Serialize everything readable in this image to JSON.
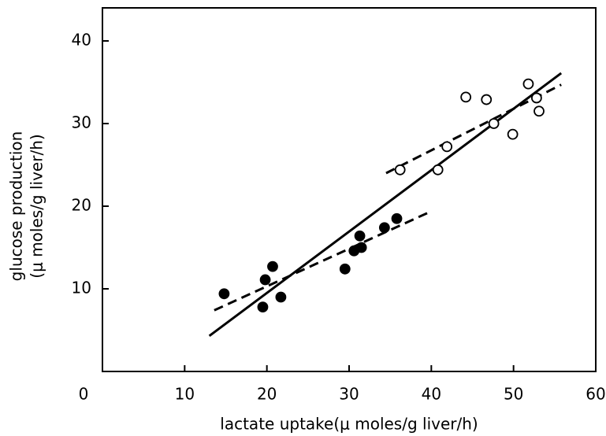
{
  "chart_data": {
    "type": "scatter",
    "xlabel": "lactate uptake(μ moles/g liver/h)",
    "ylabel": [
      "glucose production",
      "(μ moles/g liver/h)"
    ],
    "xlim": [
      0,
      60
    ],
    "xticks": [
      0,
      10,
      20,
      30,
      40,
      50,
      60
    ],
    "ylim": [
      0,
      44
    ],
    "yticks": [
      10,
      20,
      30,
      40
    ],
    "color": "#000000",
    "series": [
      {
        "marker": "filled",
        "x": [
          14.8,
          19.5,
          19.8,
          20.7,
          21.7,
          29.5,
          30.6,
          31.3,
          31.5,
          34.3,
          35.8
        ],
        "values": [
          9.4,
          7.8,
          11.1,
          12.7,
          9.0,
          12.4,
          14.6,
          16.4,
          15.0,
          17.4,
          18.5
        ]
      },
      {
        "marker": "open",
        "x": [
          36.2,
          40.8,
          41.9,
          44.2,
          46.7,
          47.6,
          49.9,
          51.8,
          52.8,
          53.1
        ],
        "values": [
          24.4,
          24.4,
          27.2,
          33.2,
          32.9,
          30.0,
          28.7,
          34.8,
          33.1,
          31.5
        ]
      }
    ],
    "lines": [
      {
        "dashed": false,
        "x": [
          13,
          55.8
        ],
        "values": [
          4.3,
          36.1
        ]
      },
      {
        "dashed": true,
        "x": [
          13.6,
          39.8
        ],
        "values": [
          7.4,
          19.3
        ]
      },
      {
        "dashed": true,
        "x": [
          34.5,
          55.8
        ],
        "values": [
          24.0,
          34.7
        ]
      }
    ]
  }
}
